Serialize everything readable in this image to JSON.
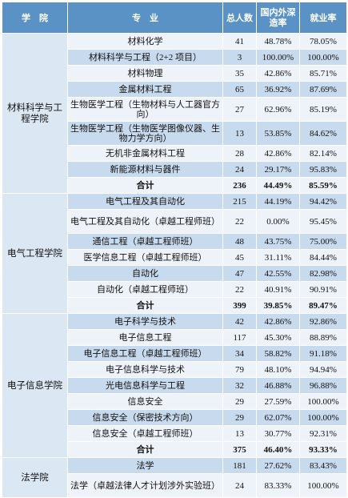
{
  "header": {
    "school": "学　院",
    "major": "专　业",
    "count": "总人数",
    "study": "国内外深造率",
    "employment": "就业率"
  },
  "schools": [
    {
      "name": "材料科学与工程学院",
      "rows": [
        {
          "major": "材料化学",
          "count": "41",
          "study": "48.78%",
          "employment": "78.05%"
        },
        {
          "major": "材料科学与工程（2+2 项目）",
          "count": "3",
          "study": "100.00%",
          "employment": "100.00%"
        },
        {
          "major": "材料物理",
          "count": "35",
          "study": "42.86%",
          "employment": "85.71%"
        },
        {
          "major": "金属材料工程",
          "count": "65",
          "study": "36.92%",
          "employment": "87.69%"
        },
        {
          "major": "生物医学工程（生物材料与人工器官方向）",
          "count": "27",
          "study": "62.96%",
          "employment": "85.19%"
        },
        {
          "major": "生物医学工程（生物医学图像仪器、生物力学方向）",
          "count": "13",
          "study": "53.85%",
          "employment": "84.62%"
        },
        {
          "major": "无机非金属材料工程",
          "count": "28",
          "study": "42.86%",
          "employment": "82.14%"
        },
        {
          "major": "新能源材料与器件",
          "count": "24",
          "study": "29.17%",
          "employment": "95.83%"
        }
      ],
      "total": {
        "label": "合计",
        "count": "236",
        "study": "44.49%",
        "employment": "85.59%"
      }
    },
    {
      "name": "电气工程学院",
      "rows": [
        {
          "major": "电气工程及其自动化",
          "count": "215",
          "study": "44.19%",
          "employment": "94.42%"
        },
        {
          "major": "电气工程及其自动化（卓越工程师班）",
          "count": "22",
          "study": "0.00%",
          "employment": "95.45%"
        },
        {
          "major": "通信工程（卓越工程师班）",
          "count": "48",
          "study": "43.75%",
          "employment": "75.00%"
        },
        {
          "major": "医学信息工程（卓越工程师班）",
          "count": "45",
          "study": "31.11%",
          "employment": "84.44%"
        },
        {
          "major": "自动化",
          "count": "47",
          "study": "42.55%",
          "employment": "82.98%"
        },
        {
          "major": "自动化（卓越工程师班）",
          "count": "22",
          "study": "40.91%",
          "employment": "90.91%"
        }
      ],
      "total": {
        "label": "合计",
        "count": "399",
        "study": "39.85%",
        "employment": "89.47%"
      }
    },
    {
      "name": "电子信息学院",
      "rows": [
        {
          "major": "电子科学与技术",
          "count": "42",
          "study": "42.86%",
          "employment": "92.86%"
        },
        {
          "major": "电子信息工程",
          "count": "117",
          "study": "45.30%",
          "employment": "88.89%"
        },
        {
          "major": "电子信息工程（卓越工程师班）",
          "count": "34",
          "study": "58.82%",
          "employment": "91.18%"
        },
        {
          "major": "电子信息科学与技术",
          "count": "79",
          "study": "48.10%",
          "employment": "94.94%"
        },
        {
          "major": "光电信息科学与工程",
          "count": "32",
          "study": "46.88%",
          "employment": "96.88%"
        },
        {
          "major": "信息安全",
          "count": "29",
          "study": "27.59%",
          "employment": "100.00%"
        },
        {
          "major": "信息安全（保密技术方向）",
          "count": "29",
          "study": "62.07%",
          "employment": "100.00%"
        },
        {
          "major": "信息安全（卓越工程师班）",
          "count": "13",
          "study": "30.77%",
          "employment": "92.31%"
        }
      ],
      "total": {
        "label": "合计",
        "count": "375",
        "study": "46.40%",
        "employment": "93.33%"
      }
    },
    {
      "name": "法学院",
      "rows": [
        {
          "major": "法学",
          "count": "181",
          "study": "27.62%",
          "employment": "83.43%"
        },
        {
          "major": "法学（卓越法律人才计划涉外实验班）",
          "count": "24",
          "study": "83.33%",
          "employment": "100.00%"
        }
      ]
    }
  ]
}
